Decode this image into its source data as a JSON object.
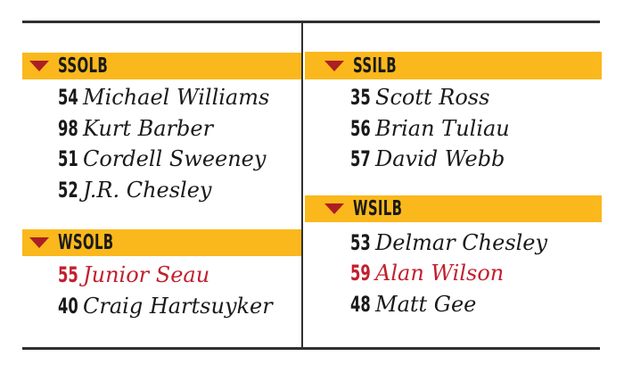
{
  "theme": {
    "background": "#FFFFFF",
    "bar_yellow": "#FAB81C",
    "triangle_red": "#AC1E24",
    "text_black": "#1A1A1A",
    "highlight_red": "#C2202F",
    "rule_color": "#303030"
  },
  "columns": [
    {
      "name": "left",
      "sections": [
        {
          "label": "SSOLB",
          "players": [
            {
              "number": "54",
              "name": "Michael Williams",
              "highlighted": false,
              "color": "#1A1A1A"
            },
            {
              "number": "98",
              "name": "Kurt Barber",
              "highlighted": false,
              "color": "#1A1A1A"
            },
            {
              "number": "51",
              "name": "Cordell Sweeney",
              "highlighted": false,
              "color": "#1A1A1A"
            },
            {
              "number": "52",
              "name": "J.R. Chesley",
              "highlighted": false,
              "color": "#1A1A1A"
            }
          ]
        },
        {
          "label": "WSOLB",
          "players": [
            {
              "number": "55",
              "name": "Junior Seau",
              "highlighted": true,
              "color": "#C2202F"
            },
            {
              "number": "40",
              "name": "Craig Hartsuyker",
              "highlighted": false,
              "color": "#1A1A1A"
            }
          ]
        }
      ]
    },
    {
      "name": "right",
      "sections": [
        {
          "label": "SSILB",
          "players": [
            {
              "number": "35",
              "name": "Scott Ross",
              "highlighted": false,
              "color": "#1A1A1A"
            },
            {
              "number": "56",
              "name": "Brian Tuliau",
              "highlighted": false,
              "color": "#1A1A1A"
            },
            {
              "number": "57",
              "name": "David Webb",
              "highlighted": false,
              "color": "#1A1A1A"
            }
          ]
        },
        {
          "label": "WSILB",
          "players": [
            {
              "number": "53",
              "name": "Delmar Chesley",
              "highlighted": false,
              "color": "#1A1A1A"
            },
            {
              "number": "59",
              "name": "Alan Wilson",
              "highlighted": true,
              "color": "#C2202F"
            },
            {
              "number": "48",
              "name": "Matt Gee",
              "highlighted": false,
              "color": "#1A1A1A"
            }
          ]
        }
      ]
    }
  ]
}
